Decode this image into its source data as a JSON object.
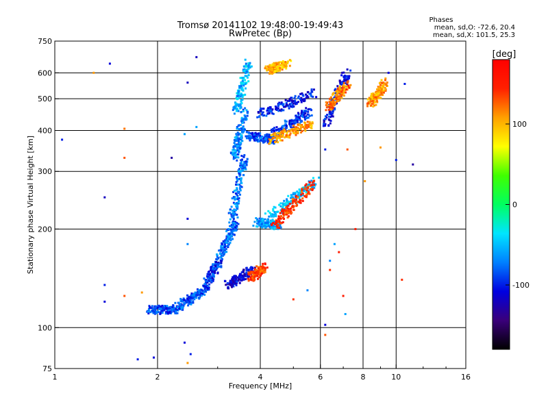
{
  "chart_data": {
    "type": "scatter",
    "title": "Tromsø 20141102 19:48:00-19:49:43",
    "subtitle": "RwPretec (Bp)",
    "xlabel": "Frequency [MHz]",
    "ylabel": "Stationary phase Virtual Height [km]",
    "x_scale": "log",
    "y_scale": "log",
    "xlim": [
      1,
      16
    ],
    "ylim": [
      75,
      750
    ],
    "x_ticks": [
      1,
      2,
      4,
      6,
      8,
      10,
      16
    ],
    "x_tick_labels": [
      "1",
      "2",
      "4",
      "6",
      "8",
      "10",
      "16"
    ],
    "y_ticks": [
      75,
      100,
      200,
      300,
      400,
      500,
      600,
      750
    ],
    "y_tick_labels": [
      "75",
      "100",
      "200",
      "300",
      "400",
      "500",
      "600",
      "750"
    ],
    "grid": true,
    "stats": {
      "heading": "Phases",
      "o_mode": "mean, sd,O: -72.6, 20.4",
      "x_mode": "mean, sd,X: 101.5, 25.3"
    },
    "colorbar": {
      "label": "[deg]",
      "range": [
        -180,
        180
      ],
      "ticks": [
        100,
        0,
        -100
      ],
      "tick_labels": [
        "100",
        "0",
        "-100"
      ],
      "colors": [
        "#000000",
        "#3a007a",
        "#0000e0",
        "#0080ff",
        "#00e5ff",
        "#00ff60",
        "#40ff00",
        "#ffff00",
        "#ffa000",
        "#ff2000",
        "#ff0000"
      ]
    },
    "series": [
      {
        "mode": "O-trace segments (digitized approximation of dense echo traces)",
        "segments": [
          {
            "f0": 1.88,
            "f1": 2.3,
            "h0": 113,
            "h1": 114,
            "phase": -90
          },
          {
            "f0": 2.3,
            "f1": 2.75,
            "h0": 116,
            "h1": 130,
            "phase": -85
          },
          {
            "f0": 2.75,
            "f1": 3.05,
            "h0": 133,
            "h1": 160,
            "phase": -95
          },
          {
            "f0": 3.05,
            "f1": 3.4,
            "h0": 165,
            "h1": 215,
            "phase": -80
          },
          {
            "f0": 3.3,
            "f1": 3.6,
            "h0": 215,
            "h1": 330,
            "phase": -75
          },
          {
            "f0": 3.35,
            "f1": 3.62,
            "h0": 330,
            "h1": 460,
            "phase": -70
          },
          {
            "f0": 3.4,
            "f1": 3.7,
            "h0": 460,
            "h1": 640,
            "phase": -55
          },
          {
            "f0": 3.7,
            "f1": 4.4,
            "h0": 385,
            "h1": 375,
            "phase": -85
          },
          {
            "f0": 4.4,
            "f1": 5.6,
            "h0": 390,
            "h1": 460,
            "phase": -95
          },
          {
            "f0": 4.0,
            "f1": 5.8,
            "h0": 450,
            "h1": 520,
            "phase": -100
          },
          {
            "f0": 6.2,
            "f1": 7.2,
            "h0": 420,
            "h1": 600,
            "phase": -105
          },
          {
            "f0": 3.2,
            "f1": 3.8,
            "h0": 135,
            "h1": 150,
            "phase": -110
          },
          {
            "f0": 3.9,
            "f1": 4.6,
            "h0": 210,
            "h1": 205,
            "phase": -60
          },
          {
            "f0": 4.2,
            "f1": 5.8,
            "h0": 215,
            "h1": 280,
            "phase": -50
          }
        ]
      },
      {
        "mode": "X-trace segments (warm colored echoes)",
        "segments": [
          {
            "f0": 3.75,
            "f1": 4.1,
            "h0": 142,
            "h1": 153,
            "phase": 140
          },
          {
            "f0": 4.4,
            "f1": 5.7,
            "h0": 205,
            "h1": 275,
            "phase": 140
          },
          {
            "f0": 4.3,
            "f1": 5.6,
            "h0": 375,
            "h1": 420,
            "phase": 110
          },
          {
            "f0": 6.3,
            "f1": 7.3,
            "h0": 470,
            "h1": 560,
            "phase": 120
          },
          {
            "f0": 8.4,
            "f1": 9.3,
            "h0": 480,
            "h1": 560,
            "phase": 110
          },
          {
            "f0": 4.2,
            "f1": 4.8,
            "h0": 610,
            "h1": 640,
            "phase": 100
          }
        ]
      },
      {
        "mode": "isolated echoes",
        "points": [
          {
            "x": 1.05,
            "y": 375,
            "phase": -100
          },
          {
            "x": 1.3,
            "y": 600,
            "phase": 110
          },
          {
            "x": 1.45,
            "y": 640,
            "phase": -110
          },
          {
            "x": 1.4,
            "y": 250,
            "phase": -120
          },
          {
            "x": 1.6,
            "y": 405,
            "phase": 120
          },
          {
            "x": 1.6,
            "y": 330,
            "phase": 130
          },
          {
            "x": 1.4,
            "y": 135,
            "phase": -100
          },
          {
            "x": 1.4,
            "y": 120,
            "phase": -110
          },
          {
            "x": 1.6,
            "y": 125,
            "phase": 130
          },
          {
            "x": 1.75,
            "y": 80,
            "phase": -100
          },
          {
            "x": 1.95,
            "y": 81,
            "phase": -110
          },
          {
            "x": 1.8,
            "y": 128,
            "phase": 110
          },
          {
            "x": 2.2,
            "y": 330,
            "phase": -130
          },
          {
            "x": 2.45,
            "y": 560,
            "phase": -120
          },
          {
            "x": 2.45,
            "y": 215,
            "phase": -110
          },
          {
            "x": 2.45,
            "y": 180,
            "phase": -70
          },
          {
            "x": 2.6,
            "y": 670,
            "phase": -120
          },
          {
            "x": 2.6,
            "y": 410,
            "phase": -60
          },
          {
            "x": 2.4,
            "y": 90,
            "phase": -110
          },
          {
            "x": 2.5,
            "y": 83,
            "phase": -100
          },
          {
            "x": 2.45,
            "y": 78,
            "phase": 110
          },
          {
            "x": 2.4,
            "y": 390,
            "phase": -60
          },
          {
            "x": 6.2,
            "y": 95,
            "phase": 130
          },
          {
            "x": 6.2,
            "y": 102,
            "phase": -110
          },
          {
            "x": 6.4,
            "y": 160,
            "phase": -70
          },
          {
            "x": 6.4,
            "y": 150,
            "phase": 140
          },
          {
            "x": 6.6,
            "y": 180,
            "phase": -60
          },
          {
            "x": 7.0,
            "y": 125,
            "phase": 150
          },
          {
            "x": 7.1,
            "y": 110,
            "phase": -60
          },
          {
            "x": 6.2,
            "y": 350,
            "phase": -100
          },
          {
            "x": 7.2,
            "y": 350,
            "phase": 130
          },
          {
            "x": 7.6,
            "y": 200,
            "phase": 150
          },
          {
            "x": 8.1,
            "y": 280,
            "phase": 110
          },
          {
            "x": 9.0,
            "y": 355,
            "phase": 110
          },
          {
            "x": 9.5,
            "y": 600,
            "phase": -110
          },
          {
            "x": 10.0,
            "y": 325,
            "phase": -100
          },
          {
            "x": 10.6,
            "y": 555,
            "phase": -100
          },
          {
            "x": 11.2,
            "y": 315,
            "phase": -130
          },
          {
            "x": 10.4,
            "y": 140,
            "phase": 140
          },
          {
            "x": 5.0,
            "y": 122,
            "phase": 140
          },
          {
            "x": 6.8,
            "y": 170,
            "phase": 150
          },
          {
            "x": 5.5,
            "y": 130,
            "phase": -70
          }
        ]
      }
    ]
  }
}
